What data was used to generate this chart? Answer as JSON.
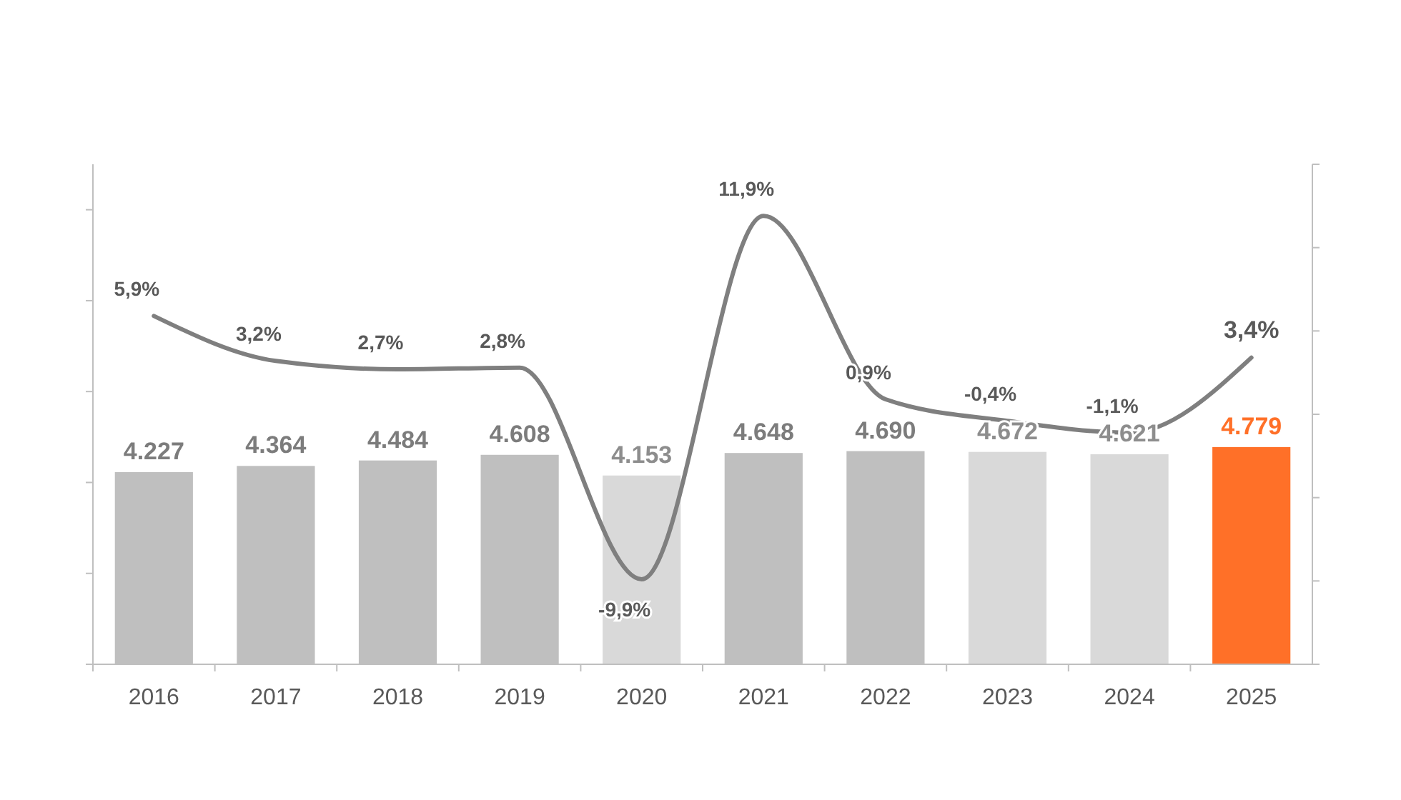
{
  "chart_data": {
    "type": "bar",
    "categories": [
      "2016",
      "2017",
      "2018",
      "2019",
      "2020",
      "2021",
      "2022",
      "2023",
      "2024",
      "2025"
    ],
    "series": [
      {
        "colors": [
          "#bfbfbf",
          "#bfbfbf",
          "#bfbfbf",
          "#bfbfbf",
          "#d9d9d9",
          "#bfbfbf",
          "#bfbfbf",
          "#d9d9d9",
          "#d9d9d9",
          "#ff7028"
        ],
        "values": [
          4227,
          4364,
          4484,
          4608,
          4153,
          4648,
          4690,
          4672,
          4621,
          4779
        ],
        "value_labels": [
          "4.227",
          "4.364",
          "4.484",
          "4.608",
          "4.153",
          "4.648",
          "4.690",
          "4.672",
          "4.621",
          "4.779"
        ]
      },
      {
        "type": "line",
        "axis": "y2",
        "color": "#7f7f7f",
        "values": [
          5.9,
          3.2,
          2.7,
          2.8,
          -9.9,
          11.9,
          0.9,
          -0.4,
          -1.1,
          3.4
        ],
        "value_labels": [
          "5,9%",
          "3,2%",
          "2,7%",
          "2,8%",
          "-9,9%",
          "11,9%",
          "0,9%",
          "-0,4%",
          "-1,1%",
          "3,4%"
        ]
      }
    ],
    "ylim": [
      0,
      11000
    ],
    "yticks": [
      {
        "value": 0,
        "label": null
      },
      {
        "value": 2000,
        "label": null
      },
      {
        "value": 4000,
        "label": null
      },
      {
        "value": 6000,
        "label": null
      },
      {
        "value": 8000,
        "label": null
      },
      {
        "value": 10000,
        "label": null
      }
    ],
    "y2lim": [
      -15,
      15
    ],
    "y2ticks": [
      {
        "value": -15,
        "label": null
      },
      {
        "value": -10,
        "label": null
      },
      {
        "value": -5,
        "label": null
      },
      {
        "value": 0,
        "label": null
      },
      {
        "value": 5,
        "label": null
      },
      {
        "value": 10,
        "label": null
      },
      {
        "value": 15,
        "label": null
      }
    ],
    "tick_labels": "x",
    "grid": false,
    "marker": "none",
    "line_style": "solid"
  }
}
